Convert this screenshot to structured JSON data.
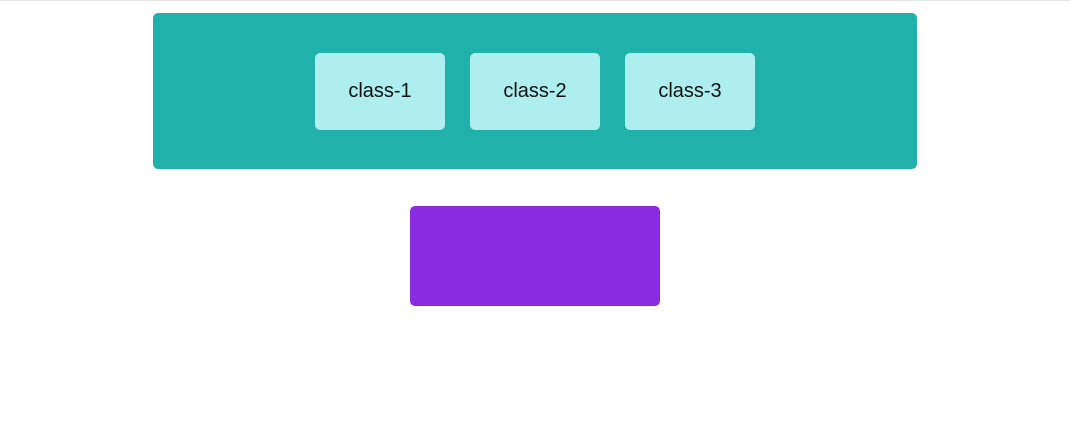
{
  "colors": {
    "panel_background": "#20B2AA",
    "chip_background": "#AFEEEE",
    "chip_text": "#111111",
    "target_box": "#8A2BE2"
  },
  "panel": {
    "items": [
      {
        "label": "class-1"
      },
      {
        "label": "class-2"
      },
      {
        "label": "class-3"
      }
    ]
  }
}
